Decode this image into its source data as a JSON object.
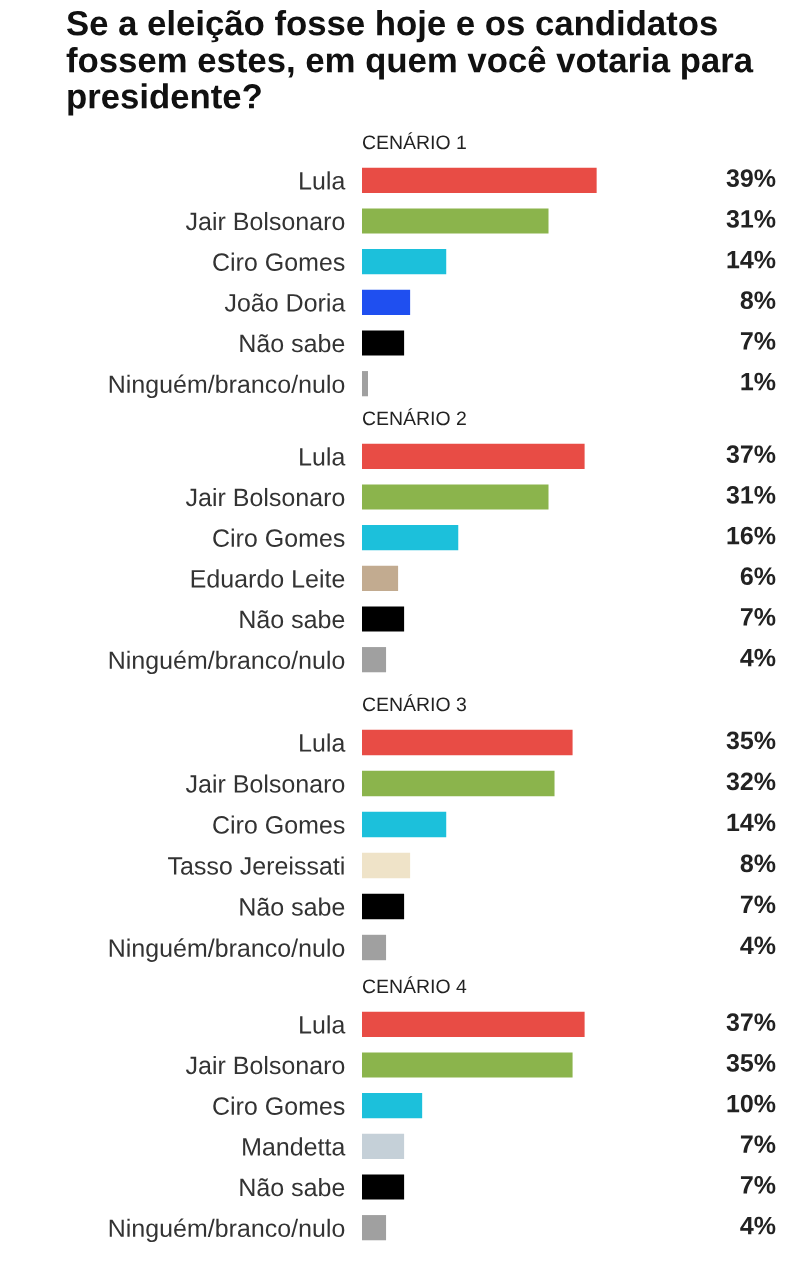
{
  "chart_data": [
    {
      "type": "bar",
      "orientation": "horizontal",
      "title": "Se a eleição fosse hoje e os candidatos fossem estes, em quem você votaria para presidente?",
      "subtitle": "CENÁRIO 1",
      "categories": [
        "Lula",
        "Jair Bolsonaro",
        "Ciro Gomes",
        "João Doria",
        "Não sabe",
        "Ninguém/branco/nulo"
      ],
      "values": [
        39,
        31,
        14,
        8,
        7,
        1
      ],
      "colors": [
        "#e84c45",
        "#8bb44c",
        "#1cc0db",
        "#1f4ff0",
        "#000000",
        "#a0a0a0"
      ],
      "value_labels": [
        "39%",
        "31%",
        "14%",
        "8%",
        "7%",
        "1%"
      ]
    },
    {
      "type": "bar",
      "orientation": "horizontal",
      "subtitle": "CENÁRIO 2",
      "categories": [
        "Lula",
        "Jair Bolsonaro",
        "Ciro Gomes",
        "Eduardo Leite",
        "Não sabe",
        "Ninguém/branco/nulo"
      ],
      "values": [
        37,
        31,
        16,
        6,
        7,
        4
      ],
      "colors": [
        "#e84c45",
        "#8bb44c",
        "#1cc0db",
        "#c2ab90",
        "#000000",
        "#a0a0a0"
      ],
      "value_labels": [
        "37%",
        "31%",
        "16%",
        "6%",
        "7%",
        "4%"
      ]
    },
    {
      "type": "bar",
      "orientation": "horizontal",
      "subtitle": "CENÁRIO 3",
      "categories": [
        "Lula",
        "Jair Bolsonaro",
        "Ciro Gomes",
        "Tasso Jereissati",
        "Não sabe",
        "Ninguém/branco/nulo"
      ],
      "values": [
        35,
        32,
        14,
        8,
        7,
        4
      ],
      "colors": [
        "#e84c45",
        "#8bb44c",
        "#1cc0db",
        "#efe3c8",
        "#000000",
        "#a0a0a0"
      ],
      "value_labels": [
        "35%",
        "32%",
        "14%",
        "8%",
        "7%",
        "4%"
      ]
    },
    {
      "type": "bar",
      "orientation": "horizontal",
      "subtitle": "CENÁRIO 4",
      "categories": [
        "Lula",
        "Jair Bolsonaro",
        "Ciro Gomes",
        "Mandetta",
        "Não sabe",
        "Ninguém/branco/nulo"
      ],
      "values": [
        37,
        35,
        10,
        7,
        7,
        4
      ],
      "colors": [
        "#e84c45",
        "#8bb44c",
        "#1cc0db",
        "#c5d0d8",
        "#000000",
        "#a0a0a0"
      ],
      "value_labels": [
        "37%",
        "35%",
        "10%",
        "7%",
        "7%",
        "4%"
      ]
    }
  ]
}
